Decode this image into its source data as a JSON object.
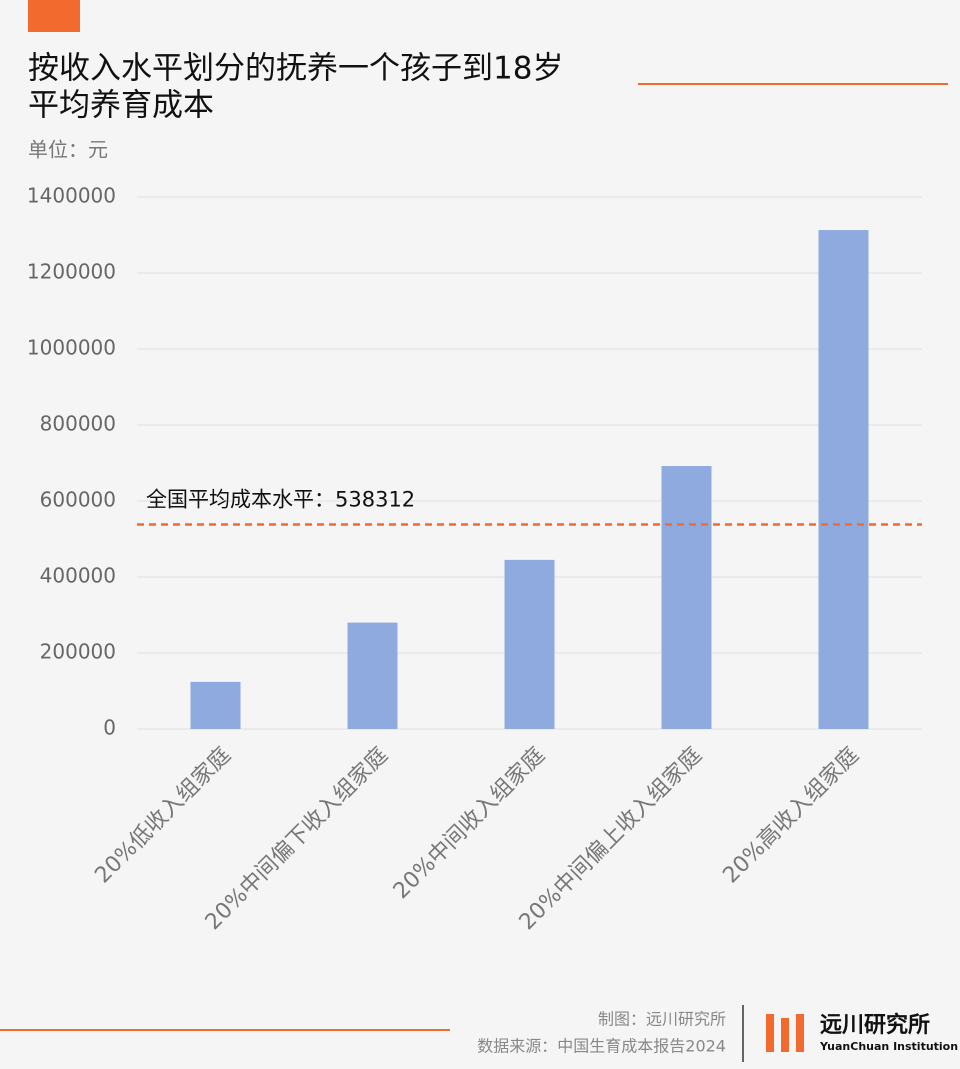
{
  "chart_data": {
    "type": "bar",
    "title": [
      "按收入水平划分的抚养一个孩子到18岁",
      "平均养育成本"
    ],
    "unit": "单位：元",
    "categories": [
      "20%低收入组家庭",
      "20%中间偏下收入组家庭",
      "20%中间收入组家庭",
      "20%中间偏上收入组家庭",
      "20%高收入组家庭"
    ],
    "values": [
      124000,
      280000,
      445000,
      692000,
      1313000
    ],
    "color": "#8eaadf",
    "ylim": [
      0,
      1400000
    ],
    "yticks": [
      0,
      200000,
      400000,
      600000,
      800000,
      1000000,
      1200000,
      1400000
    ],
    "grid": true,
    "reference_line": {
      "value": 538312,
      "label": "全国平均成本水平：538312",
      "color": "#f26a2e"
    },
    "footer": {
      "credit": "制图：远川研究所",
      "source": "数据来源：中国生育成本报告2024",
      "brand": "远川研究所",
      "brand_en": "YuanChuan Institution"
    }
  }
}
